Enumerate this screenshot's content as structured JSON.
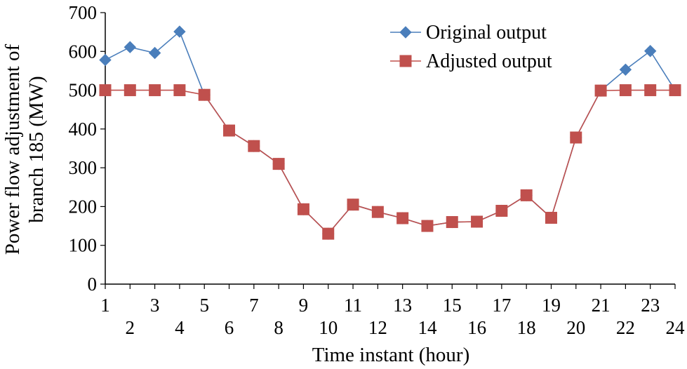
{
  "chart_data": {
    "type": "line",
    "title": "",
    "xlabel": "Time instant (hour)",
    "ylabel_line1": "Power flow adjustment of",
    "ylabel_line2": "branch 185 (MW)",
    "xlim": [
      1,
      24
    ],
    "ylim": [
      0,
      700
    ],
    "yticks": [
      0,
      100,
      200,
      300,
      400,
      500,
      600,
      700
    ],
    "x": [
      1,
      2,
      3,
      4,
      5,
      6,
      7,
      8,
      9,
      10,
      11,
      12,
      13,
      14,
      15,
      16,
      17,
      18,
      19,
      20,
      21,
      22,
      23,
      24
    ],
    "x_tick_labels_top": [
      "1",
      "3",
      "5",
      "7",
      "9",
      "11",
      "13",
      "15",
      "17",
      "19",
      "21",
      "23"
    ],
    "x_tick_labels_bottom": [
      "2",
      "4",
      "6",
      "8",
      "10",
      "12",
      "14",
      "16",
      "18",
      "20",
      "22",
      "24"
    ],
    "grid": false,
    "legend": "top-right",
    "series": [
      {
        "name": "Original output",
        "color": "#4a7ebb",
        "marker": "diamond",
        "values": [
          578,
          611,
          596,
          651,
          488,
          396,
          356,
          310,
          193,
          130,
          205,
          186,
          170,
          150,
          160,
          161,
          189,
          229,
          171,
          378,
          499,
          553,
          601,
          500
        ]
      },
      {
        "name": "Adjusted output",
        "color": "#c0504d",
        "marker": "square",
        "values": [
          500,
          500,
          500,
          500,
          488,
          396,
          356,
          310,
          193,
          130,
          205,
          186,
          170,
          150,
          160,
          161,
          189,
          229,
          171,
          378,
          499,
          500,
          500,
          500
        ]
      }
    ]
  }
}
